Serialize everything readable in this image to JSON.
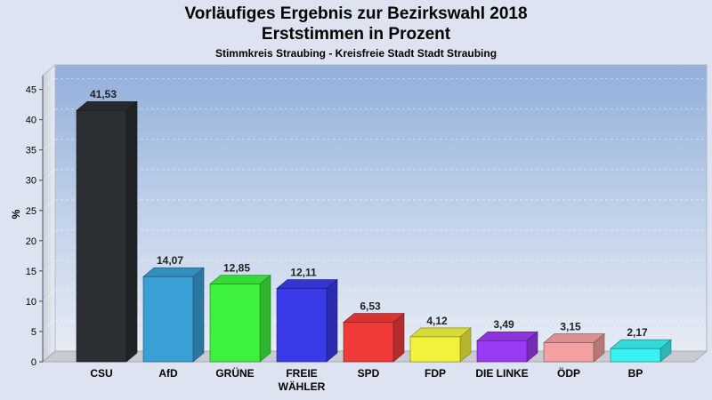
{
  "chart_data": {
    "type": "bar",
    "title_line1": "Vorläufiges Ergebnis zur Bezirkswahl 2018",
    "title_line2": "Erststimmen in Prozent",
    "subtitle": "Stimmkreis Straubing - Kreisfreie Stadt Stadt Straubing",
    "xlabel": "",
    "ylabel": "%",
    "ylim": [
      0,
      47
    ],
    "yticks": [
      0,
      5,
      10,
      15,
      20,
      25,
      30,
      35,
      40,
      45
    ],
    "grid": true,
    "categories": [
      "CSU",
      "AfD",
      "GRÜNE",
      "FREIE WÄHLER",
      "SPD",
      "FDP",
      "DIE LINKE",
      "ÖDP",
      "BP"
    ],
    "category_lines": [
      [
        "CSU"
      ],
      [
        "AfD"
      ],
      [
        "GRÜNE"
      ],
      [
        "FREIE",
        "WÄHLER"
      ],
      [
        "SPD"
      ],
      [
        "FDP"
      ],
      [
        "DIE LINKE"
      ],
      [
        "ÖDP"
      ],
      [
        "BP"
      ]
    ],
    "values": [
      41.53,
      14.07,
      12.85,
      12.11,
      6.53,
      4.12,
      3.49,
      3.15,
      2.17
    ],
    "value_labels": [
      "41,53",
      "14,07",
      "12,85",
      "12,11",
      "6,53",
      "4,12",
      "3,49",
      "3,15",
      "2,17"
    ],
    "colors": [
      "#2b2e33",
      "#3a9fd4",
      "#3cf23c",
      "#3a3ae8",
      "#f03a3a",
      "#f2f23c",
      "#9a3af2",
      "#f2a0a0",
      "#3af2f2"
    ]
  }
}
